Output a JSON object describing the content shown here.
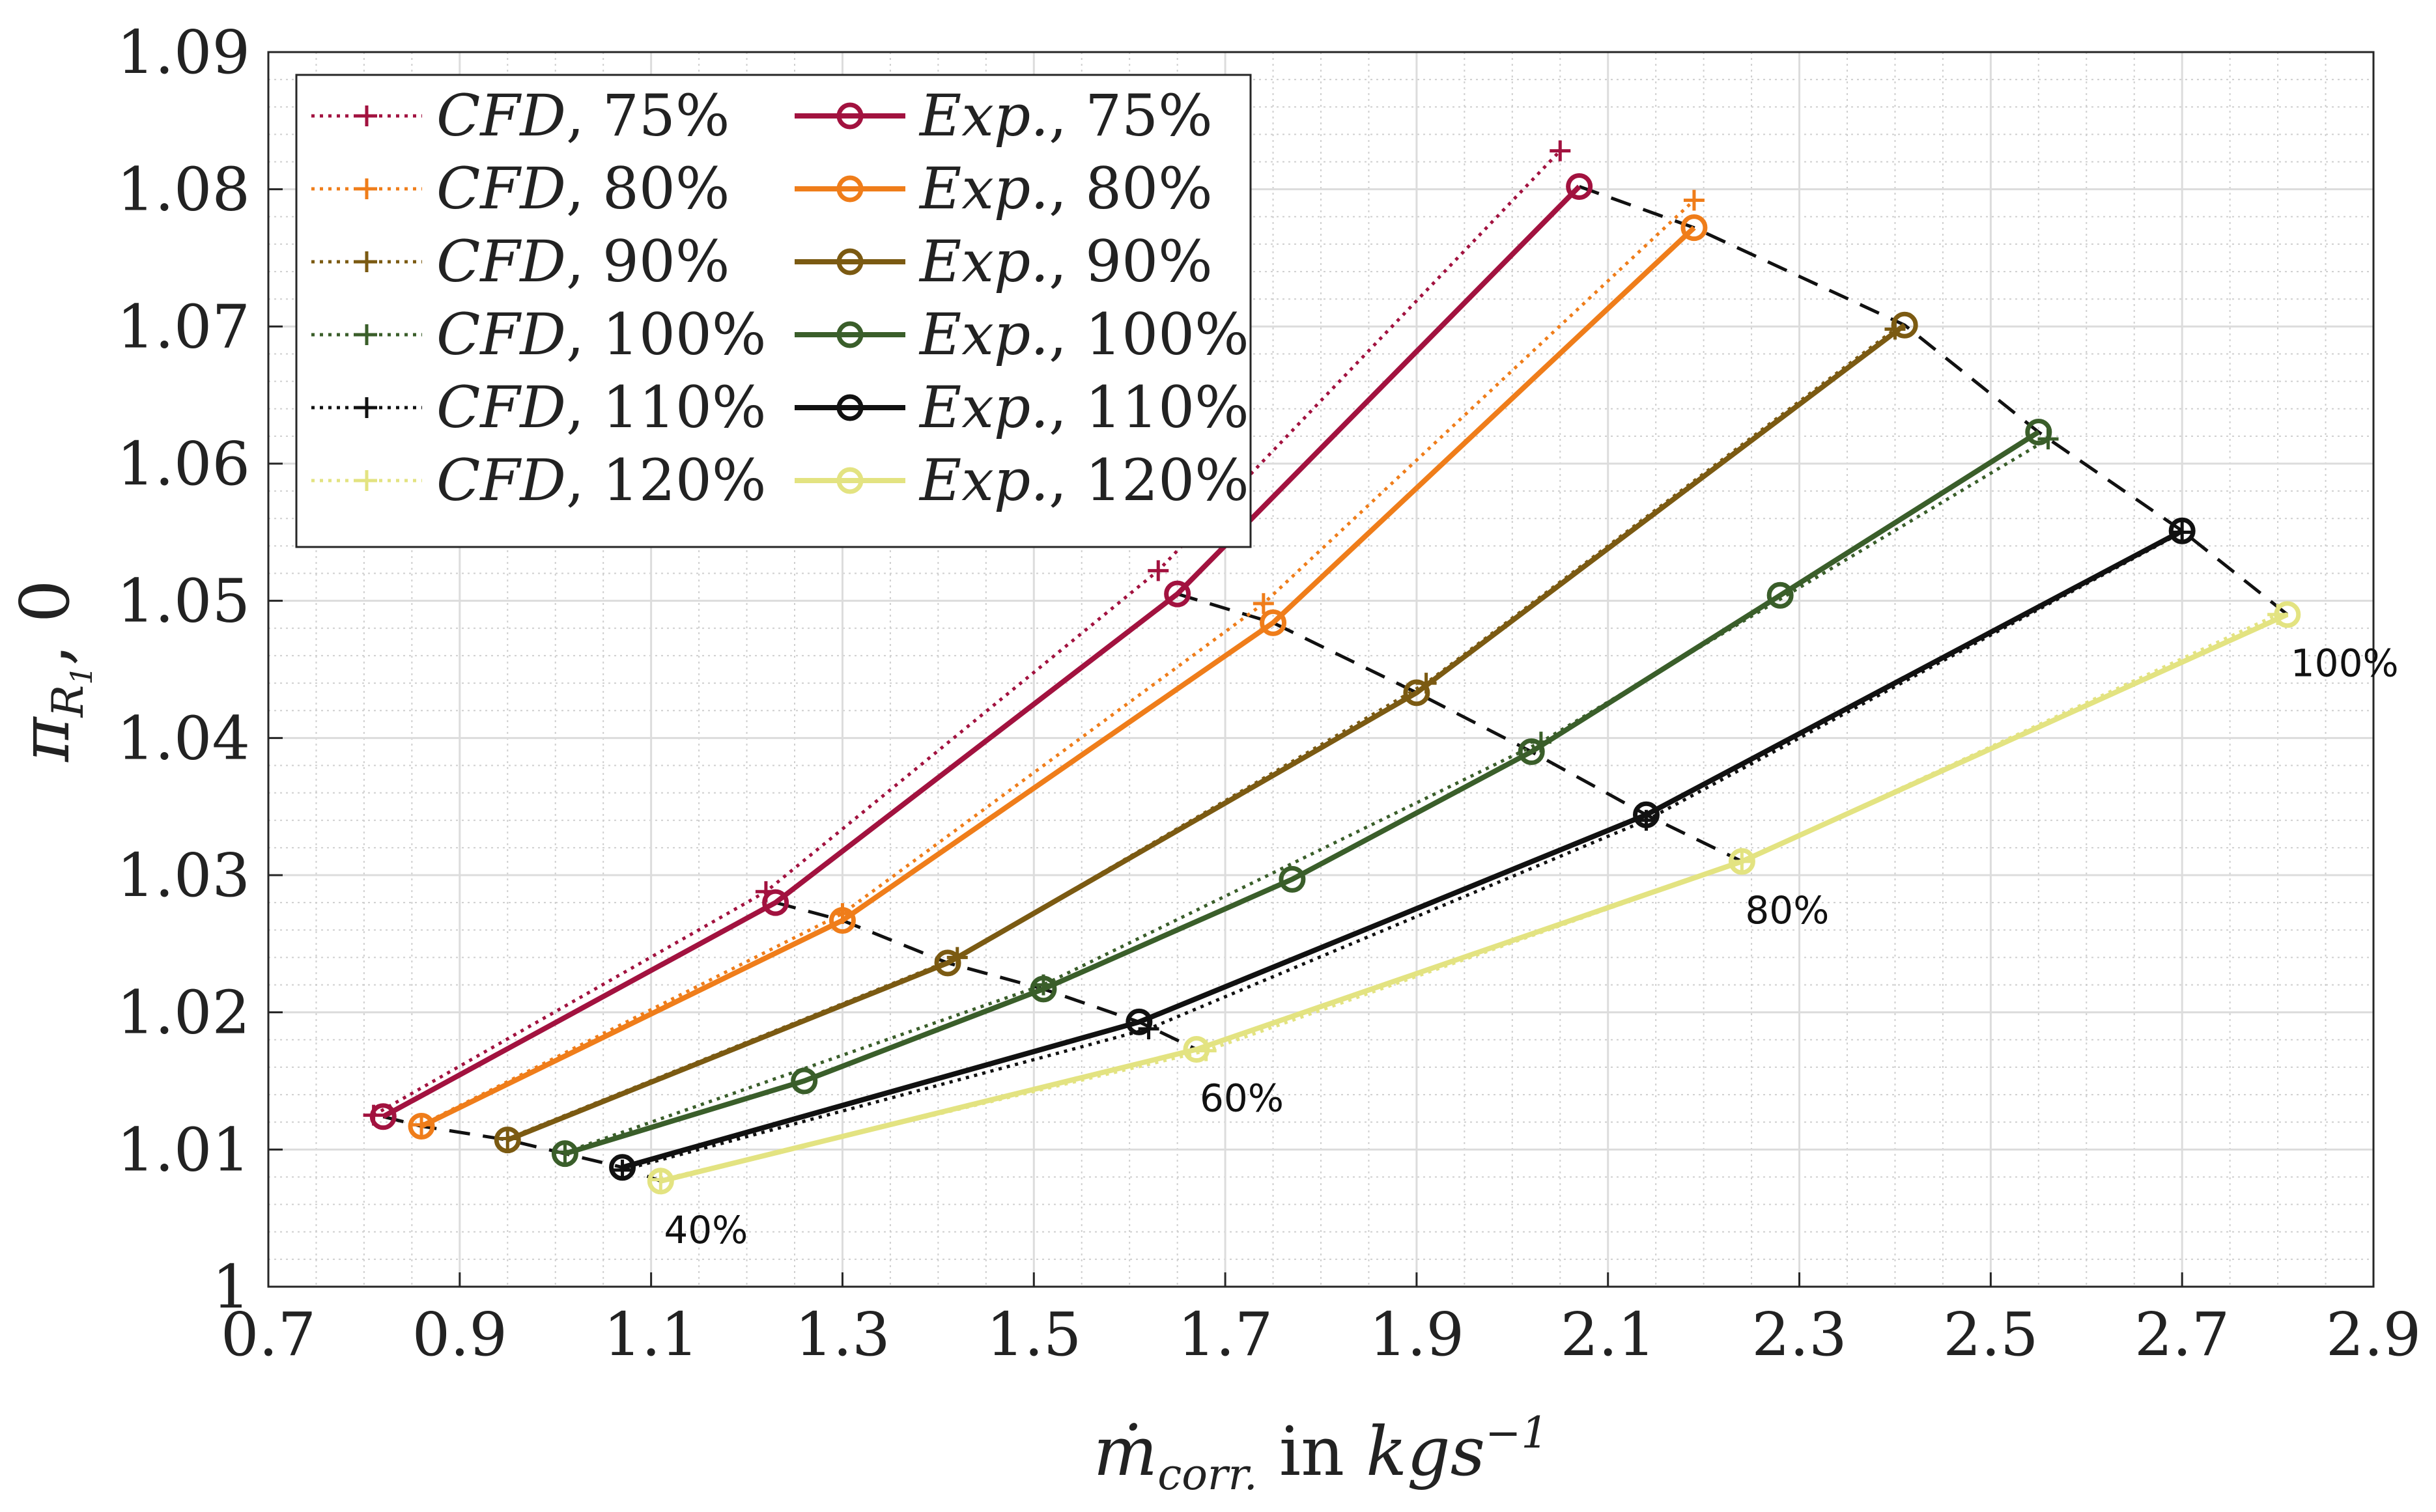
{
  "chart_data": {
    "type": "line",
    "xlabel": "ṁcorr. in kgs−1",
    "ylabel": "πR1,0",
    "xlim": [
      0.7,
      2.9
    ],
    "ylim": [
      1.0,
      1.09
    ],
    "xticks": [
      "0.7",
      "0.9",
      "1.1",
      "1.3",
      "1.5",
      "1.7",
      "1.9",
      "2.1",
      "2.3",
      "2.5",
      "2.7",
      "2.9"
    ],
    "yticks": [
      "1",
      "1.01",
      "1.02",
      "1.03",
      "1.04",
      "1.05",
      "1.06",
      "1.07",
      "1.08",
      "1.09"
    ],
    "grid": true,
    "legend_position": "top-left",
    "series": [
      {
        "name": "CFD, 75%",
        "kind": "CFD",
        "color": "#A2123F",
        "x": [
          0.81,
          1.22,
          1.63,
          2.05
        ],
        "y": [
          1.0125,
          1.0288,
          1.0522,
          1.0828
        ]
      },
      {
        "name": "CFD, 80%",
        "kind": "CFD",
        "color": "#EF7D1A",
        "x": [
          0.86,
          1.3,
          1.74,
          2.19
        ],
        "y": [
          1.0118,
          1.0272,
          1.0498,
          1.0792
        ]
      },
      {
        "name": "CFD, 90%",
        "kind": "CFD",
        "color": "#7B5A12",
        "x": [
          0.95,
          1.42,
          1.91,
          2.4
        ],
        "y": [
          1.0108,
          1.024,
          1.044,
          1.0698
        ]
      },
      {
        "name": "CFD, 100%",
        "kind": "CFD",
        "color": "#3A5E2A",
        "x": [
          1.01,
          1.51,
          2.03,
          2.56
        ],
        "y": [
          1.0098,
          1.022,
          1.0397,
          1.0618
        ]
      },
      {
        "name": "CFD, 110%",
        "kind": "CFD",
        "color": "#111111",
        "x": [
          1.07,
          1.62,
          2.14,
          2.7
        ],
        "y": [
          1.0085,
          1.0188,
          1.034,
          1.055
        ]
      },
      {
        "name": "CFD, 120%",
        "kind": "CFD",
        "color": "#E3E381",
        "x": [
          1.11,
          1.68,
          2.24,
          2.8
        ],
        "y": [
          1.0078,
          1.0172,
          1.031,
          1.049
        ]
      },
      {
        "name": "Exp., 75%",
        "kind": "Exp.",
        "color": "#A2123F",
        "x": [
          0.82,
          1.23,
          1.65,
          2.07
        ],
        "y": [
          1.0124,
          1.028,
          1.0505,
          1.0802
        ]
      },
      {
        "name": "Exp., 80%",
        "kind": "Exp.",
        "color": "#EF7D1A",
        "x": [
          0.86,
          1.3,
          1.75,
          2.19
        ],
        "y": [
          1.0117,
          1.0267,
          1.0484,
          1.0772
        ]
      },
      {
        "name": "Exp., 90%",
        "kind": "Exp.",
        "color": "#7B5A12",
        "x": [
          0.95,
          1.41,
          1.9,
          2.41
        ],
        "y": [
          1.0107,
          1.0236,
          1.0433,
          1.0701
        ]
      },
      {
        "name": "Exp., 100%",
        "kind": "Exp.",
        "color": "#3A5E2A",
        "x": [
          1.01,
          1.26,
          1.51,
          1.77,
          2.02,
          2.28,
          2.55
        ],
        "y": [
          1.0097,
          1.015,
          1.0217,
          1.0297,
          1.039,
          1.0504,
          1.0623
        ]
      },
      {
        "name": "Exp., 110%",
        "kind": "Exp.",
        "color": "#111111",
        "x": [
          1.07,
          1.61,
          2.14,
          2.7
        ],
        "y": [
          1.0087,
          1.0193,
          1.0344,
          1.0551
        ]
      },
      {
        "name": "Exp., 120%",
        "kind": "Exp.",
        "color": "#E3E381",
        "x": [
          1.11,
          1.67,
          2.24,
          2.81
        ],
        "y": [
          1.0077,
          1.0173,
          1.031,
          1.049
        ]
      }
    ],
    "throttle_lines": [
      {
        "label": "40%",
        "x": [
          0.82,
          0.86,
          0.95,
          1.01,
          1.07,
          1.11
        ],
        "y": [
          1.0124,
          1.0117,
          1.0107,
          1.0097,
          1.0087,
          1.0077
        ]
      },
      {
        "label": "60%",
        "x": [
          1.23,
          1.3,
          1.41,
          1.51,
          1.61,
          1.67
        ],
        "y": [
          1.028,
          1.0267,
          1.0236,
          1.0217,
          1.0193,
          1.0173
        ]
      },
      {
        "label": "80%",
        "x": [
          1.65,
          1.75,
          1.9,
          2.02,
          2.14,
          2.24
        ],
        "y": [
          1.0505,
          1.0484,
          1.0433,
          1.039,
          1.0344,
          1.031
        ]
      },
      {
        "label": "100%",
        "x": [
          2.07,
          2.19,
          2.41,
          2.55,
          2.7,
          2.81
        ],
        "y": [
          1.0802,
          1.0772,
          1.0701,
          1.0623,
          1.0551,
          1.049
        ]
      }
    ],
    "legend": [
      {
        "kind": "CFD",
        "pct": ", 75%"
      },
      {
        "kind": "CFD",
        "pct": ", 80%"
      },
      {
        "kind": "CFD",
        "pct": ", 90%"
      },
      {
        "kind": "CFD",
        "pct": ", 100%"
      },
      {
        "kind": "CFD",
        "pct": ", 110%"
      },
      {
        "kind": "CFD",
        "pct": ", 120%"
      },
      {
        "kind": "Exp.",
        "pct": ", 75%"
      },
      {
        "kind": "Exp.",
        "pct": ", 80%"
      },
      {
        "kind": "Exp.",
        "pct": ", 90%"
      },
      {
        "kind": "Exp.",
        "pct": ", 100%"
      },
      {
        "kind": "Exp.",
        "pct": ", 110%"
      },
      {
        "kind": "Exp.",
        "pct": ", 120%"
      }
    ],
    "xlabel_parts": {
      "main": "ṁ",
      "sub": "corr.",
      "mid": " in ",
      "unit": "kgs",
      "exp": "−1"
    },
    "ylabel_parts": {
      "main": "π",
      "sub": "R",
      "subsub": "1",
      "tail": ", 0"
    }
  }
}
